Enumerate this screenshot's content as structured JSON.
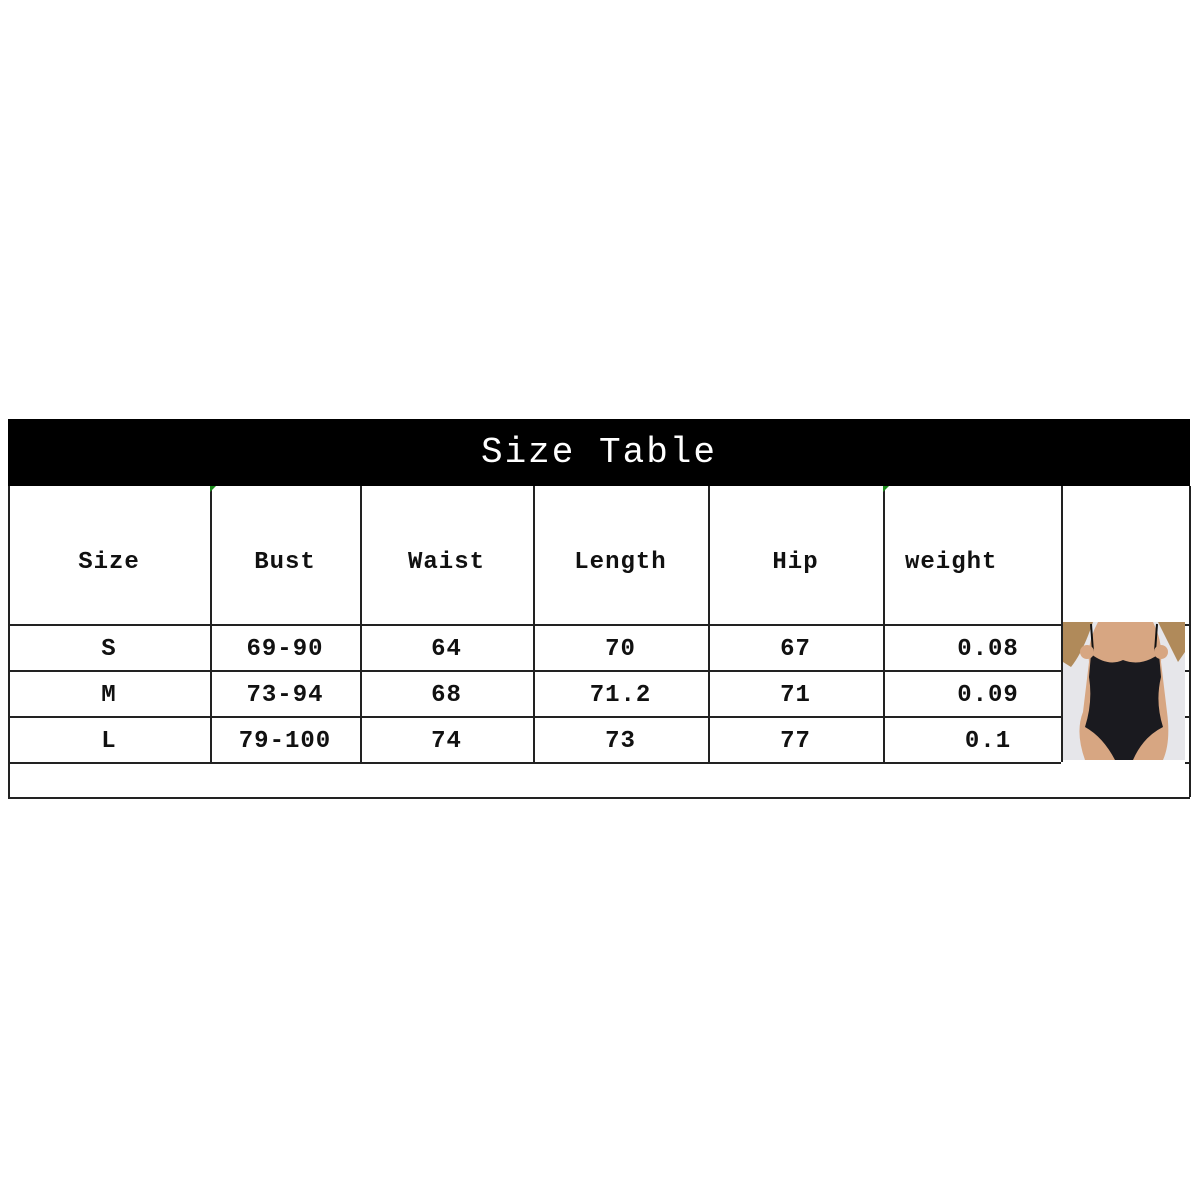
{
  "title": "Size Table",
  "columns": [
    "Size",
    "Bust",
    "Waist",
    "Length",
    "Hip",
    "weight"
  ],
  "rows": [
    [
      "S",
      "69-90",
      "64",
      "70",
      "67",
      "0.08"
    ],
    [
      "M",
      "73-94",
      "68",
      "71.2",
      "71",
      "0.09"
    ],
    [
      "L",
      "79-100",
      "74",
      "73",
      "77",
      "0.1"
    ]
  ],
  "product_image": "black lace bodysuit photo",
  "colors": {
    "title_bg": "#000000",
    "title_text": "#ffffff",
    "border": "#222222"
  }
}
